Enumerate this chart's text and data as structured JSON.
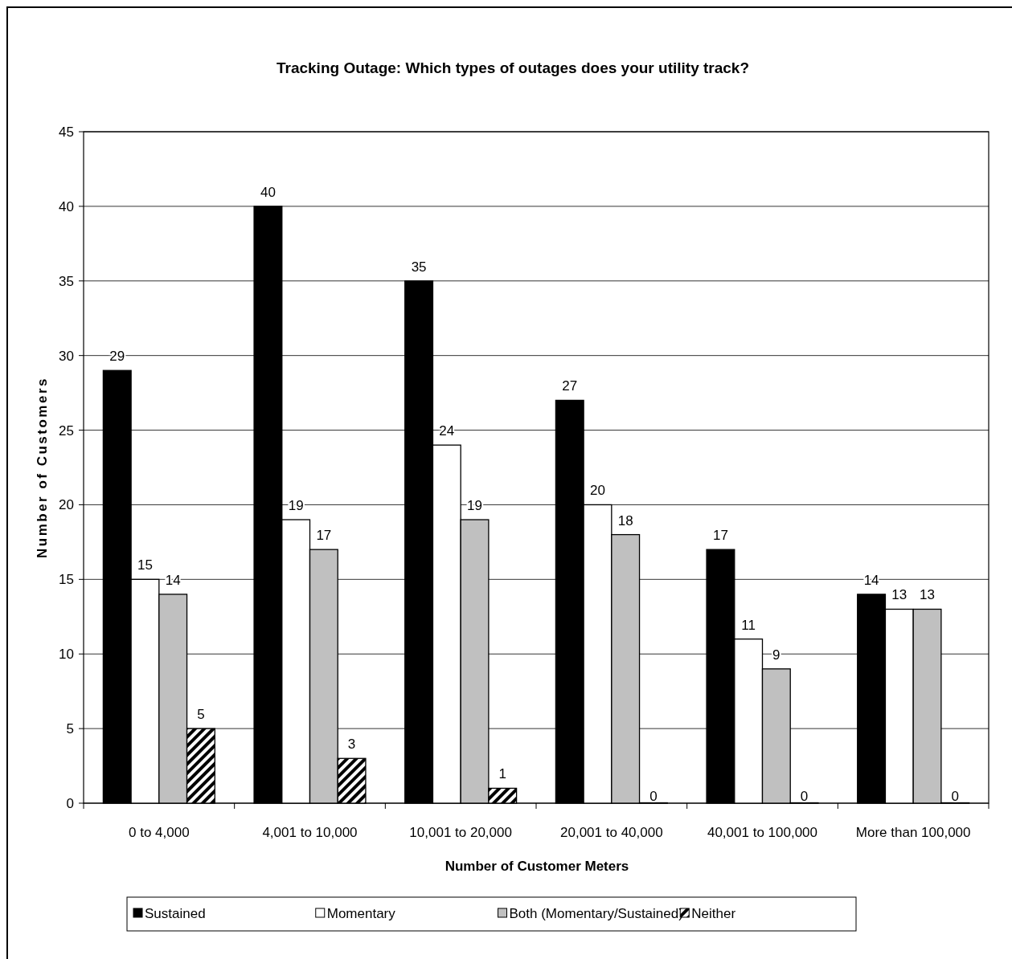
{
  "chart_data": {
    "type": "bar",
    "title": "Tracking Outage: Which types of outages does your utility track?",
    "xlabel": "Number of Customer Meters",
    "ylabel": "Number of Customers",
    "categories": [
      "0 to 4,000",
      "4,001 to 10,000",
      "10,001 to 20,000",
      "20,001 to 40,000",
      "40,001 to 100,000",
      "More than 100,000"
    ],
    "series": [
      {
        "name": "Sustained",
        "color": "#000000",
        "values": [
          29,
          40,
          35,
          27,
          17,
          14
        ]
      },
      {
        "name": "Momentary",
        "color": "#ffffff",
        "values": [
          15,
          19,
          24,
          20,
          11,
          13
        ]
      },
      {
        "name": "Both (Momentary/Sustained)",
        "color": "#c0c0c0",
        "values": [
          14,
          17,
          19,
          18,
          9,
          13
        ]
      },
      {
        "name": "Neither",
        "color": "#000000",
        "values": [
          5,
          3,
          1,
          0,
          0,
          0
        ]
      }
    ],
    "ylim": [
      0,
      45
    ],
    "yticks": [
      0,
      5,
      10,
      15,
      20,
      25,
      30,
      35,
      40,
      45
    ],
    "grid": "y",
    "legend": "bottom",
    "data_labels": true
  }
}
